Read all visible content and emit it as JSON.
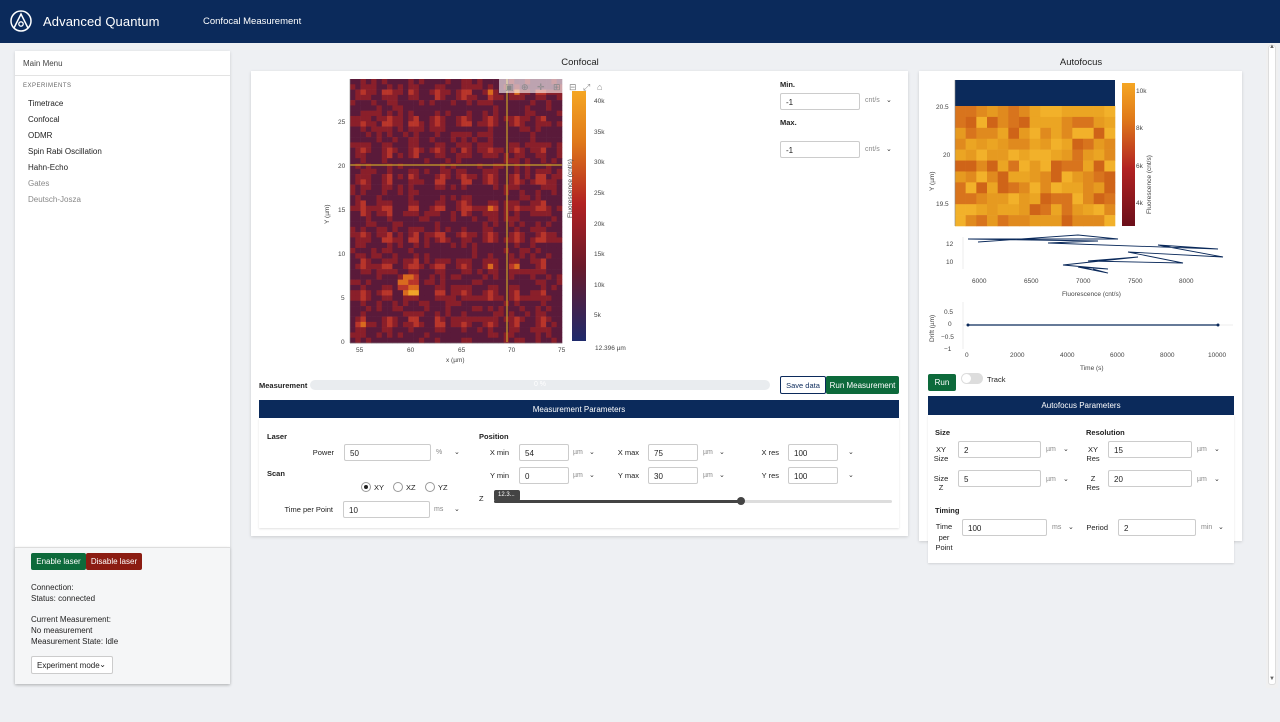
{
  "app": {
    "brand": "Advanced Quantum",
    "page": "Confocal Measurement"
  },
  "sidebar": {
    "title": "Main Menu",
    "section": "EXPERIMENTS",
    "items": [
      {
        "label": "Timetrace",
        "enabled": true
      },
      {
        "label": "Confocal",
        "enabled": true
      },
      {
        "label": "ODMR",
        "enabled": true
      },
      {
        "label": "Spin Rabi Oscillation",
        "enabled": true
      },
      {
        "label": "Hahn-Echo",
        "enabled": true
      },
      {
        "label": "Gates",
        "enabled": false
      },
      {
        "label": "Deutsch-Josza",
        "enabled": false
      }
    ],
    "enable_laser": "Enable laser",
    "disable_laser": "Disable laser",
    "connection_label": "Connection:",
    "status": "Status: connected",
    "current_measurement_label": "Current Measurement:",
    "current_measurement": "No measurement",
    "measurement_state": "Measurement State: Idle",
    "mode": "Experiment mode"
  },
  "confocal": {
    "title": "Confocal",
    "colorbar_label": "Fluorescence (cnt/s)",
    "colorbar_ticks": [
      "40k",
      "35k",
      "30k",
      "25k",
      "20k",
      "15k",
      "10k",
      "5k"
    ],
    "xlabel": "x (µm)",
    "ylabel": "Y (µm)",
    "x_ticks": [
      "55",
      "60",
      "65",
      "70",
      "75"
    ],
    "y_ticks": [
      "25",
      "20",
      "15",
      "10",
      "5",
      "0"
    ],
    "scale_note": "12.396 µm",
    "min_label": "Min.",
    "min_value": "-1",
    "max_label": "Max.",
    "max_value": "-1",
    "unit_cnt": "cnt/s",
    "measurement_label": "Measurement",
    "progress_percent": 0,
    "progress_text": "0 %",
    "save_data": "Save data",
    "run_measurement": "Run Measurement",
    "params_title": "Measurement Parameters",
    "laser_label": "Laser",
    "power_label": "Power",
    "power_value": "50",
    "power_unit": "%",
    "scan_label": "Scan",
    "scan_options": [
      "XY",
      "XZ",
      "YZ"
    ],
    "scan_selected": "XY",
    "time_per_point_label": "Time per Point",
    "time_per_point_value": "10",
    "time_unit": "ms",
    "position_label": "Position",
    "xmin_label": "X min",
    "xmin_value": "54",
    "xmax_label": "X max",
    "xmax_value": "75",
    "xres_label": "X res",
    "xres_value": "100",
    "ymin_label": "Y min",
    "ymin_value": "0",
    "ymax_label": "Y max",
    "ymax_value": "30",
    "yres_label": "Y res",
    "yres_value": "100",
    "z_label": "Z",
    "z_tooltip": "12.3...",
    "z_fraction": 0.62,
    "um_unit": "µm"
  },
  "autofocus": {
    "title": "Autofocus",
    "colorbar_label": "Fluorescence (cnt/s)",
    "colorbar_ticks": [
      "10k",
      "8k",
      "6k",
      "4k"
    ],
    "heat_y_label": "Y (µm)",
    "heat_y_ticks": [
      "20.5",
      "20",
      "19.5"
    ],
    "line_y_ticks": [
      "12",
      "10"
    ],
    "line_x_ticks": [
      "6000",
      "6500",
      "7000",
      "7500",
      "8000"
    ],
    "line_xlabel": "Fluorescence (cnt/s)",
    "drift_ylabel": "Drift (µm)",
    "drift_y_ticks": [
      "0.5",
      "0",
      "−0.5",
      "−1"
    ],
    "drift_x_ticks": [
      "0",
      "2000",
      "4000",
      "6000",
      "8000",
      "10000"
    ],
    "drift_xlabel": "Time (s)",
    "run": "Run",
    "track": "Track",
    "params_title": "Autofocus Parameters",
    "size_label": "Size",
    "xy_size_label_1": "XY",
    "xy_size_label_2": "Size",
    "xy_size_value": "2",
    "z_size_label_1": "Size",
    "z_size_label_2": "Z",
    "z_size_value": "5",
    "resolution_label": "Resolution",
    "xy_res_label_1": "XY",
    "xy_res_label_2": "Res",
    "xy_res_value": "15",
    "z_res_label_1": "Z",
    "z_res_label_2": "Res",
    "z_res_value": "20",
    "timing_label": "Timing",
    "tpp_label_1": "Time",
    "tpp_label_2": "per",
    "tpp_label_3": "Point",
    "tpp_value": "100",
    "tpp_unit": "ms",
    "period_label": "Period",
    "period_value": "2",
    "period_unit": "min",
    "um_unit": "µm"
  },
  "colors": {
    "navy": "#0b2a5b",
    "green": "#0d6a3b",
    "red": "#8b1c12",
    "crosshair": "#c9a227"
  }
}
